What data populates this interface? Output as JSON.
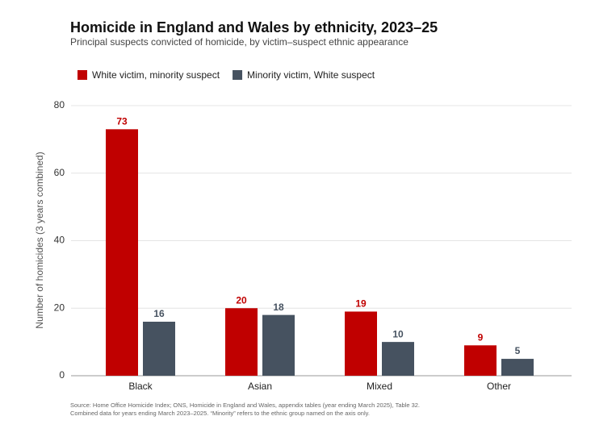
{
  "chart_data": {
    "type": "bar",
    "title": "Homicide in England and Wales by ethnicity, 2023–25",
    "subtitle": "Principal suspects convicted of homicide, by victim–suspect ethnic appearance",
    "y_label": "Number of homicides (3 years combined)",
    "categories": [
      "Black",
      "Asian",
      "Mixed",
      "Other"
    ],
    "series": [
      {
        "name": "White victim, minority suspect",
        "color": "#c00000",
        "values": [
          73,
          20,
          19,
          9
        ]
      },
      {
        "name": "Minority victim, White suspect",
        "color": "#465260",
        "values": [
          16,
          18,
          10,
          5
        ]
      }
    ],
    "ylim": [
      0,
      80
    ],
    "yticks": [
      0,
      20,
      40,
      60,
      80
    ],
    "grid": true,
    "legend": "top-left",
    "notes": [
      "Source: Home Office Homicide Index; ONS, Homicide in England and Wales, appendix tables (year ending March 2025), Table 32.",
      "Combined data for years ending March 2023–2025. “Minority” refers to the ethnic group named on the axis only."
    ]
  }
}
